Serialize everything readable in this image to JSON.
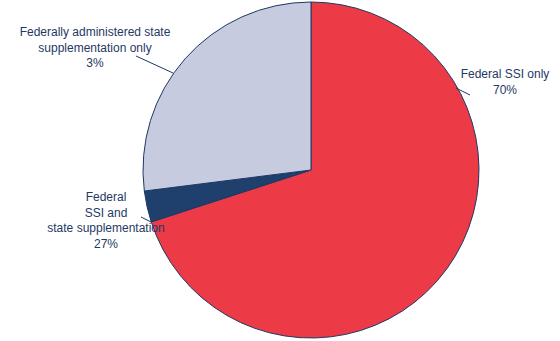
{
  "chart_data": {
    "type": "pie",
    "categories": [
      "Federal SSI only",
      "Federally administered state supplementation only",
      "Federal SSI and state supplementation"
    ],
    "values": [
      70,
      3,
      27
    ],
    "value_labels": [
      "70%",
      "3%",
      "27%"
    ],
    "colors": [
      "#ec3b47",
      "#1f3f6d",
      "#c6cbdf"
    ],
    "data_labels": true
  }
}
